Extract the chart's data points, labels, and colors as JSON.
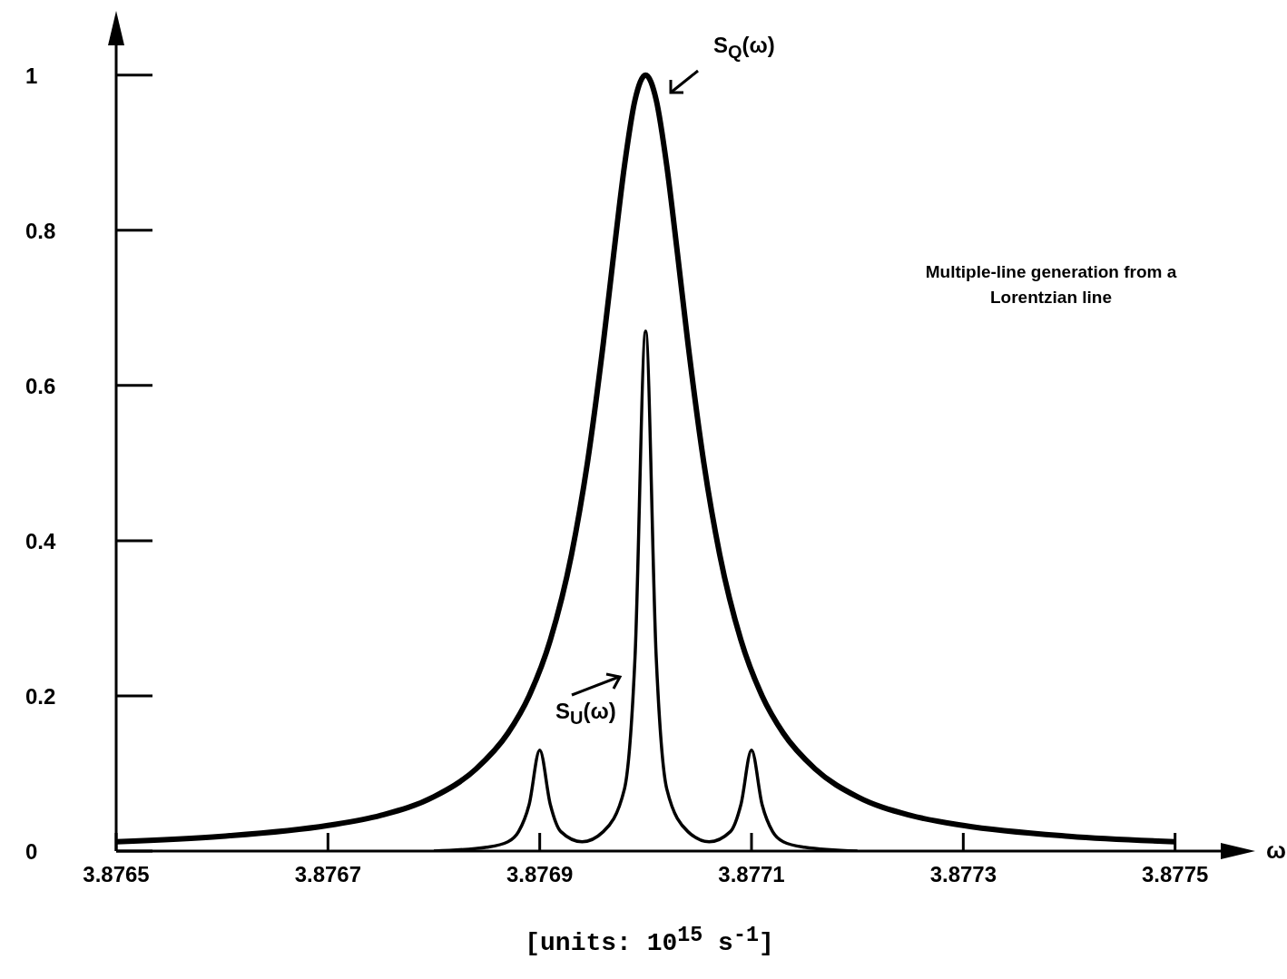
{
  "chart_data": {
    "type": "line",
    "title": "Multiple-line generation from a Lorentzian line",
    "xlabel": "[units: 10$^{15}$ s$^{-1}$]",
    "annotations": [
      "ω"
    ],
    "xlim": [
      3.8765,
      3.87755
    ],
    "xticks": [
      3.8765,
      3.8767,
      3.8769,
      3.8771,
      3.8773,
      3.8775
    ],
    "ylim": [
      0,
      1.05
    ],
    "yticks": [
      0,
      0.2,
      0.4,
      0.6,
      0.8,
      1
    ],
    "grid": false,
    "marker": "none",
    "line_style": "solid",
    "series": [
      {
        "name": "S$_{Q}$(ω)",
        "color": "#000000",
        "x": [
          3.8765,
          3.8766,
          3.8767,
          3.87675,
          3.8768,
          3.87684,
          3.87687,
          3.87689,
          3.87691,
          3.87693,
          3.876945,
          3.87696,
          3.87697,
          3.87698,
          3.87699,
          3.877,
          3.87701,
          3.87702,
          3.87703,
          3.87704,
          3.877055,
          3.87707,
          3.87709,
          3.87711,
          3.87713,
          3.87716,
          3.8772,
          3.87725,
          3.8773,
          3.8774,
          3.8775
        ],
        "values": [
          0.012,
          0.019,
          0.033,
          0.046,
          0.07,
          0.106,
          0.152,
          0.2,
          0.272,
          0.382,
          0.5,
          0.654,
          0.771,
          0.883,
          0.968,
          1,
          0.968,
          0.883,
          0.771,
          0.654,
          0.5,
          0.382,
          0.272,
          0.2,
          0.152,
          0.106,
          0.07,
          0.046,
          0.033,
          0.019,
          0.012
        ]
      },
      {
        "name": "S$_{U}$(ω)",
        "color": "#000000",
        "x": [
          3.8768,
          3.87685,
          3.87687,
          3.87688,
          3.87689,
          3.8769,
          3.87691,
          3.87692,
          3.87694,
          3.87696,
          3.87698,
          3.87699,
          3.877,
          3.87701,
          3.87702,
          3.87704,
          3.87706,
          3.87708,
          3.87709,
          3.8771,
          3.87711,
          3.87712,
          3.87713,
          3.87715,
          3.8772
        ],
        "values": [
          0,
          0.005,
          0.012,
          0.025,
          0.06,
          0.13,
          0.06,
          0.025,
          0.012,
          0.025,
          0.08,
          0.25,
          0.67,
          0.25,
          0.08,
          0.025,
          0.012,
          0.025,
          0.06,
          0.13,
          0.06,
          0.025,
          0.012,
          0.005,
          0
        ]
      }
    ]
  }
}
